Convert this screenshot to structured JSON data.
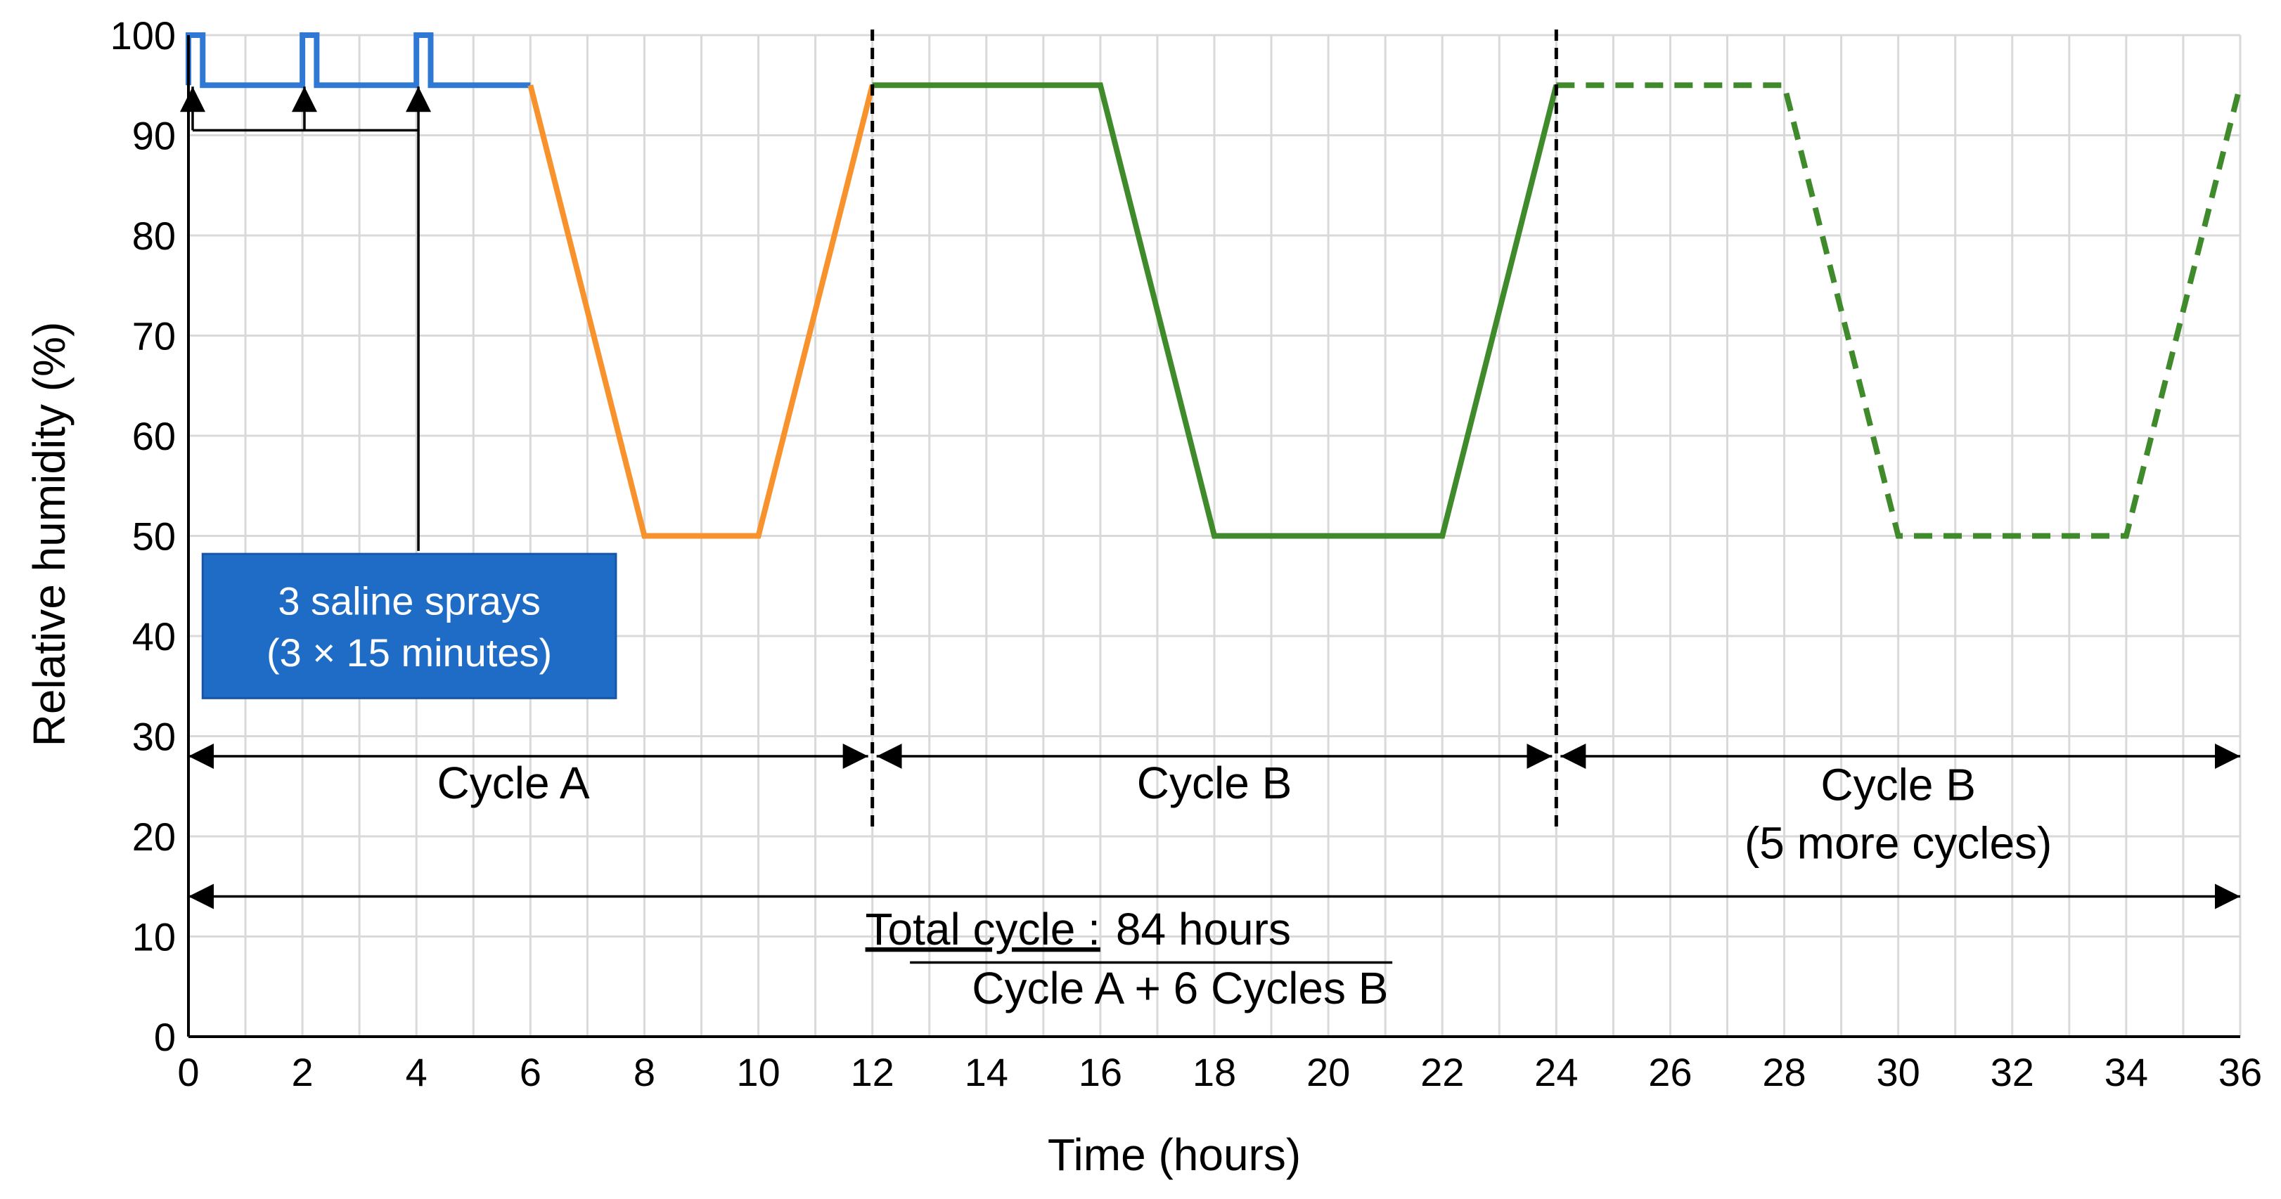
{
  "chart_data": {
    "type": "line",
    "title": "",
    "xlabel": "Time (hours)",
    "ylabel": "Relative humidity (%)",
    "xlim": [
      0,
      36
    ],
    "ylim": [
      0,
      100
    ],
    "x_ticks": [
      0,
      2,
      4,
      6,
      8,
      10,
      12,
      14,
      16,
      18,
      20,
      22,
      24,
      26,
      28,
      30,
      32,
      34,
      36
    ],
    "y_ticks": [
      0,
      10,
      20,
      30,
      40,
      50,
      60,
      70,
      80,
      90,
      100
    ],
    "grid": true,
    "series": [
      {
        "name": "Saline spray phase",
        "color": "#2f78d4",
        "style": "solid",
        "x": [
          0,
          0,
          0.25,
          0.25,
          2,
          2,
          2.25,
          2.25,
          4,
          4,
          4.25,
          4.25,
          6
        ],
        "y": [
          95,
          100,
          100,
          95,
          95,
          100,
          100,
          95,
          95,
          100,
          100,
          95,
          95
        ]
      },
      {
        "name": "Cycle A",
        "color": "#f7922d",
        "style": "solid",
        "x": [
          6,
          8,
          10,
          12
        ],
        "y": [
          95,
          50,
          50,
          95
        ]
      },
      {
        "name": "Cycle B",
        "color": "#3f8a2a",
        "style": "solid",
        "x": [
          12,
          16,
          18,
          22,
          24
        ],
        "y": [
          95,
          95,
          50,
          50,
          95
        ]
      },
      {
        "name": "Cycle B (5 more cycles)",
        "color": "#3f8a2a",
        "style": "dashed",
        "x": [
          24,
          28,
          30,
          34,
          36
        ],
        "y": [
          95,
          95,
          50,
          50,
          95
        ]
      }
    ],
    "dividers": [
      12,
      24
    ],
    "spray_arrow_times": [
      0,
      2,
      4
    ],
    "annotations": {
      "spray_box_line1": "3 saline sprays",
      "spray_box_line2": "(3 × 15 minutes)",
      "spray_box_color": "#1f6cc7",
      "cycle_a_label": "Cycle A",
      "cycle_b_label": "Cycle B",
      "cycle_b_more_label": "Cycle B",
      "cycle_b_more_sub": "(5 more cycles)",
      "total_label": "Total cycle :",
      "total_value": "84 hours",
      "total_formula": "Cycle A + 6 Cycles B"
    }
  }
}
